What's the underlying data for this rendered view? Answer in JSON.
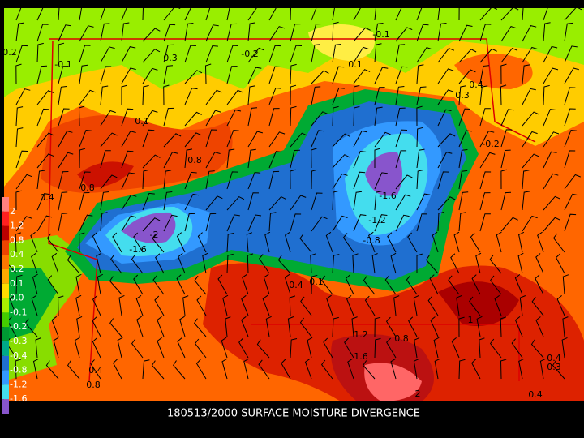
{
  "title": "180513/2000 SURFACE MOISTURE DIVERGENCE",
  "legend": {
    "labels": [
      "2",
      "1.2",
      "0.8",
      "0.4",
      "0.2",
      "0.1",
      "0.0",
      "-0.1",
      "-0.2",
      "-0.3",
      "-0.4",
      "-0.8",
      "-1.2",
      "-1.6"
    ]
  },
  "contour_labels": [
    "-2",
    "-1.6",
    "-1.6",
    "-1.2",
    "-0.8",
    "0.4",
    "0.1",
    "0.3",
    "0.1",
    "-0.2",
    "-0.1",
    "0.2",
    "-0.1",
    "0.1",
    "0.8",
    "0.8",
    "0.4",
    "0.4",
    "0.3",
    "-0.2",
    "1.2",
    "0.8",
    "1",
    "1.6",
    "2",
    "0.4",
    "0.8",
    "0.4",
    "0.3",
    "0.4"
  ]
}
